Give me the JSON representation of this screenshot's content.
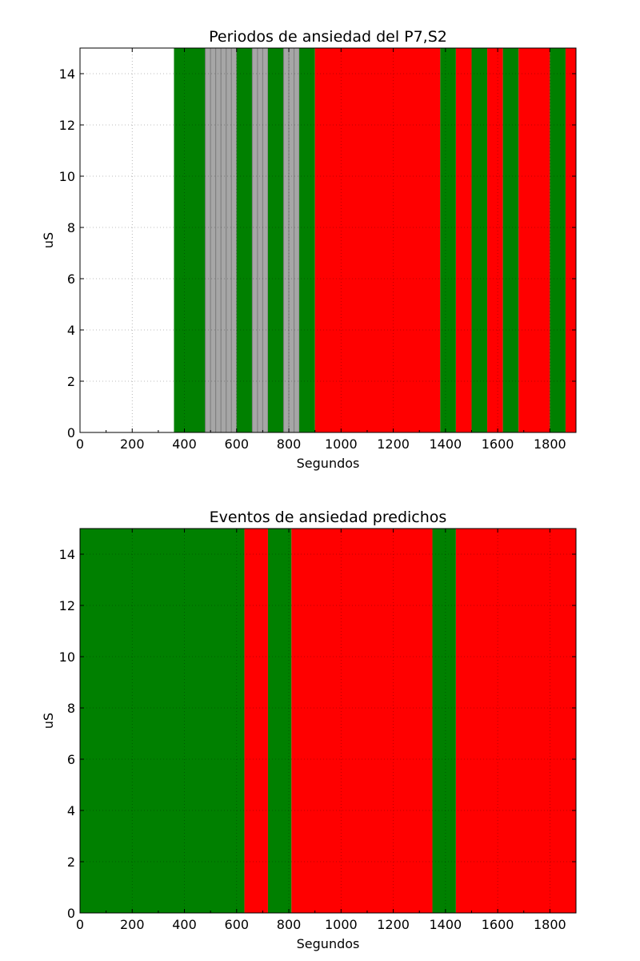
{
  "chart_data": [
    {
      "type": "timeline_spans",
      "title": "Periodos de ansiedad del P7,S2",
      "xlabel": "Segundos",
      "ylabel": "uS",
      "xlim": [
        0,
        1900
      ],
      "ylim": [
        0,
        15
      ],
      "xticks": [
        0,
        200,
        400,
        600,
        800,
        1000,
        1200,
        1400,
        1600,
        1800
      ],
      "yticks": [
        0,
        2,
        4,
        6,
        8,
        10,
        12,
        14
      ],
      "grid": true,
      "colors": {
        "green": "#008000",
        "red": "#ff0000",
        "gray": "#a6a6a6"
      },
      "spans": [
        {
          "start": 360,
          "end": 480,
          "color": "green"
        },
        {
          "start": 480,
          "end": 500,
          "color": "gray"
        },
        {
          "start": 500,
          "end": 520,
          "color": "gray"
        },
        {
          "start": 520,
          "end": 540,
          "color": "gray"
        },
        {
          "start": 540,
          "end": 560,
          "color": "gray"
        },
        {
          "start": 560,
          "end": 580,
          "color": "gray"
        },
        {
          "start": 580,
          "end": 600,
          "color": "gray"
        },
        {
          "start": 600,
          "end": 660,
          "color": "green"
        },
        {
          "start": 660,
          "end": 680,
          "color": "gray"
        },
        {
          "start": 680,
          "end": 700,
          "color": "gray"
        },
        {
          "start": 700,
          "end": 720,
          "color": "gray"
        },
        {
          "start": 720,
          "end": 780,
          "color": "green"
        },
        {
          "start": 780,
          "end": 800,
          "color": "gray"
        },
        {
          "start": 800,
          "end": 820,
          "color": "gray"
        },
        {
          "start": 820,
          "end": 840,
          "color": "gray"
        },
        {
          "start": 840,
          "end": 900,
          "color": "green"
        },
        {
          "start": 900,
          "end": 1380,
          "color": "red"
        },
        {
          "start": 1380,
          "end": 1440,
          "color": "green"
        },
        {
          "start": 1440,
          "end": 1500,
          "color": "red"
        },
        {
          "start": 1500,
          "end": 1560,
          "color": "green"
        },
        {
          "start": 1560,
          "end": 1620,
          "color": "red"
        },
        {
          "start": 1620,
          "end": 1680,
          "color": "green"
        },
        {
          "start": 1680,
          "end": 1800,
          "color": "red"
        },
        {
          "start": 1800,
          "end": 1860,
          "color": "green"
        },
        {
          "start": 1860,
          "end": 1900,
          "color": "red"
        }
      ]
    },
    {
      "type": "timeline_spans",
      "title": "Eventos de ansiedad predichos",
      "xlabel": "Segundos",
      "ylabel": "uS",
      "xlim": [
        0,
        1900
      ],
      "ylim": [
        0,
        15
      ],
      "xticks": [
        0,
        200,
        400,
        600,
        800,
        1000,
        1200,
        1400,
        1600,
        1800
      ],
      "yticks": [
        0,
        2,
        4,
        6,
        8,
        10,
        12,
        14
      ],
      "grid": true,
      "colors": {
        "green": "#008000",
        "red": "#ff0000",
        "gray": "#a6a6a6"
      },
      "spans": [
        {
          "start": 0,
          "end": 630,
          "color": "green"
        },
        {
          "start": 630,
          "end": 720,
          "color": "red"
        },
        {
          "start": 720,
          "end": 810,
          "color": "green"
        },
        {
          "start": 810,
          "end": 1350,
          "color": "red"
        },
        {
          "start": 1350,
          "end": 1440,
          "color": "green"
        },
        {
          "start": 1440,
          "end": 1900,
          "color": "red"
        }
      ]
    }
  ]
}
